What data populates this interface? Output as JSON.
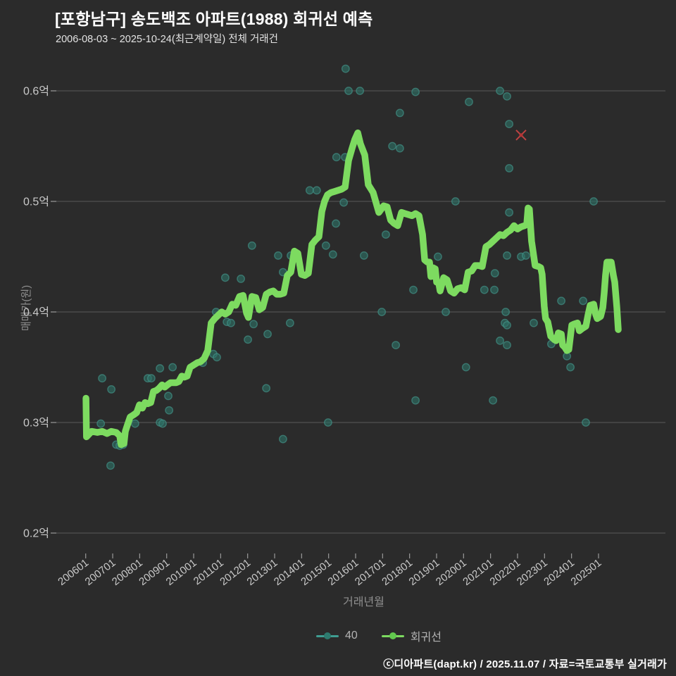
{
  "header": {
    "title": "[포항남구] 송도백조 아파트(1988) 회귀선 예측",
    "subtitle": "2006-08-03 ~ 2025-10-24(최근계약일) 전체 거래건"
  },
  "footer": {
    "text": "ⓒ디아파트(dapt.kr) / 2025.11.07 / 자료=국토교통부 실거래가"
  },
  "legend": {
    "items": [
      {
        "label": "40",
        "color": "#3f9e92"
      },
      {
        "label": "회귀선",
        "color": "#7ddb60"
      }
    ]
  },
  "chart_data": {
    "type": "line",
    "title": "[포항남구] 송도백조 아파트(1988) 회귀선 예측",
    "subtitle": "2006-08-03 ~ 2025-10-24(최근계약일) 전체 거래건",
    "xlabel": "거래년월",
    "ylabel": "매매가(원)",
    "ylim": [
      0.17,
      0.63
    ],
    "xlim": [
      2005.9,
      2027.4
    ],
    "grid": true,
    "legend_position": "bottom",
    "background": "#2b2b2b",
    "gridline_color": "#585858",
    "tick_label_color": "#c9c9c9",
    "y_ticks": [
      {
        "label": "0.6억",
        "value": 0.6
      },
      {
        "label": "0.5억",
        "value": 0.5
      },
      {
        "label": "0.4억",
        "value": 0.4
      },
      {
        "label": "0.3억",
        "value": 0.3
      },
      {
        "label": "0.2억",
        "value": 0.2
      }
    ],
    "x_ticks": [
      "200601",
      "200701",
      "200801",
      "200901",
      "201001",
      "201101",
      "201201",
      "201301",
      "201401",
      "201501",
      "201601",
      "201701",
      "201801",
      "201901",
      "202001",
      "202101",
      "202201",
      "202301",
      "202401",
      "202501"
    ],
    "series": [
      {
        "name": "40",
        "type": "scatter",
        "color": "#2d7166",
        "edge_color": "#44958a",
        "points": [
          [
            2006.56,
            0.299
          ],
          [
            2006.61,
            0.34
          ],
          [
            2006.92,
            0.261
          ],
          [
            2006.95,
            0.33
          ],
          [
            2007.13,
            0.28
          ],
          [
            2007.26,
            0.279
          ],
          [
            2007.39,
            0.28
          ],
          [
            2007.83,
            0.299
          ],
          [
            2008.3,
            0.34
          ],
          [
            2008.43,
            0.34
          ],
          [
            2008.75,
            0.349
          ],
          [
            2008.75,
            0.3
          ],
          [
            2008.85,
            0.299
          ],
          [
            2009.06,
            0.324
          ],
          [
            2009.09,
            0.311
          ],
          [
            2009.22,
            0.35
          ],
          [
            2010.34,
            0.354
          ],
          [
            2010.73,
            0.362
          ],
          [
            2010.86,
            0.359
          ],
          [
            2010.83,
            0.4
          ],
          [
            2011.17,
            0.431
          ],
          [
            2011.23,
            0.391
          ],
          [
            2011.38,
            0.39
          ],
          [
            2011.75,
            0.43
          ],
          [
            2012.01,
            0.375
          ],
          [
            2012.16,
            0.46
          ],
          [
            2012.22,
            0.389
          ],
          [
            2012.69,
            0.331
          ],
          [
            2012.74,
            0.38
          ],
          [
            2013.13,
            0.451
          ],
          [
            2013.31,
            0.436
          ],
          [
            2013.31,
            0.285
          ],
          [
            2013.57,
            0.39
          ],
          [
            2013.6,
            0.451
          ],
          [
            2014.3,
            0.51
          ],
          [
            2014.56,
            0.51
          ],
          [
            2014.9,
            0.46
          ],
          [
            2014.98,
            0.3
          ],
          [
            2015.16,
            0.452
          ],
          [
            2015.27,
            0.48
          ],
          [
            2015.29,
            0.54
          ],
          [
            2015.56,
            0.499
          ],
          [
            2015.61,
            0.54
          ],
          [
            2015.63,
            0.62
          ],
          [
            2015.74,
            0.6
          ],
          [
            2016.16,
            0.6
          ],
          [
            2016.31,
            0.451
          ],
          [
            2016.97,
            0.4
          ],
          [
            2017.12,
            0.47
          ],
          [
            2017.36,
            0.55
          ],
          [
            2017.49,
            0.37
          ],
          [
            2017.64,
            0.58
          ],
          [
            2017.64,
            0.548
          ],
          [
            2018.14,
            0.42
          ],
          [
            2018.22,
            0.599
          ],
          [
            2018.22,
            0.32
          ],
          [
            2019.05,
            0.45
          ],
          [
            2019.34,
            0.4
          ],
          [
            2019.7,
            0.5
          ],
          [
            2020.09,
            0.35
          ],
          [
            2020.2,
            0.59
          ],
          [
            2020.77,
            0.42
          ],
          [
            2021.09,
            0.32
          ],
          [
            2021.14,
            0.42
          ],
          [
            2021.16,
            0.435
          ],
          [
            2021.35,
            0.6
          ],
          [
            2021.35,
            0.374
          ],
          [
            2021.53,
            0.39
          ],
          [
            2021.56,
            0.4
          ],
          [
            2021.61,
            0.595
          ],
          [
            2021.61,
            0.451
          ],
          [
            2021.61,
            0.388
          ],
          [
            2021.61,
            0.37
          ],
          [
            2021.69,
            0.57
          ],
          [
            2021.69,
            0.53
          ],
          [
            2021.69,
            0.49
          ],
          [
            2022.13,
            0.45
          ],
          [
            2022.31,
            0.451
          ],
          [
            2022.6,
            0.39
          ],
          [
            2023.25,
            0.371
          ],
          [
            2023.62,
            0.41
          ],
          [
            2023.83,
            0.36
          ],
          [
            2023.96,
            0.35
          ],
          [
            2024.43,
            0.41
          ],
          [
            2024.53,
            0.3
          ],
          [
            2024.82,
            0.5
          ]
        ]
      },
      {
        "name": "회귀선",
        "type": "line",
        "color": "#7ddb60",
        "points": [
          [
            2006.01,
            0.322
          ],
          [
            2006.03,
            0.287
          ],
          [
            2006.22,
            0.292
          ],
          [
            2006.43,
            0.291
          ],
          [
            2006.61,
            0.292
          ],
          [
            2006.79,
            0.29
          ],
          [
            2006.95,
            0.292
          ],
          [
            2007.13,
            0.291
          ],
          [
            2007.26,
            0.288
          ],
          [
            2007.31,
            0.28
          ],
          [
            2007.42,
            0.281
          ],
          [
            2007.47,
            0.292
          ],
          [
            2007.55,
            0.298
          ],
          [
            2007.65,
            0.305
          ],
          [
            2007.78,
            0.307
          ],
          [
            2007.89,
            0.309
          ],
          [
            2007.99,
            0.316
          ],
          [
            2008.1,
            0.313
          ],
          [
            2008.2,
            0.318
          ],
          [
            2008.3,
            0.317
          ],
          [
            2008.41,
            0.318
          ],
          [
            2008.51,
            0.328
          ],
          [
            2008.62,
            0.329
          ],
          [
            2008.72,
            0.331
          ],
          [
            2008.83,
            0.334
          ],
          [
            2008.93,
            0.332
          ],
          [
            2009.03,
            0.334
          ],
          [
            2009.14,
            0.336
          ],
          [
            2009.24,
            0.336
          ],
          [
            2009.35,
            0.336
          ],
          [
            2009.45,
            0.337
          ],
          [
            2009.56,
            0.342
          ],
          [
            2009.66,
            0.341
          ],
          [
            2009.76,
            0.342
          ],
          [
            2009.87,
            0.35
          ],
          [
            2010.0,
            0.352
          ],
          [
            2010.13,
            0.354
          ],
          [
            2010.26,
            0.355
          ],
          [
            2010.39,
            0.358
          ],
          [
            2010.52,
            0.365
          ],
          [
            2010.65,
            0.39
          ],
          [
            2010.78,
            0.394
          ],
          [
            2010.91,
            0.397
          ],
          [
            2011.04,
            0.4
          ],
          [
            2011.17,
            0.398
          ],
          [
            2011.3,
            0.4
          ],
          [
            2011.43,
            0.407
          ],
          [
            2011.56,
            0.406
          ],
          [
            2011.7,
            0.414
          ],
          [
            2011.83,
            0.415
          ],
          [
            2011.96,
            0.399
          ],
          [
            2012.03,
            0.395
          ],
          [
            2012.16,
            0.414
          ],
          [
            2012.3,
            0.413
          ],
          [
            2012.43,
            0.402
          ],
          [
            2012.56,
            0.404
          ],
          [
            2012.69,
            0.416
          ],
          [
            2012.82,
            0.418
          ],
          [
            2012.95,
            0.419
          ],
          [
            2013.08,
            0.416
          ],
          [
            2013.21,
            0.416
          ],
          [
            2013.34,
            0.417
          ],
          [
            2013.47,
            0.433
          ],
          [
            2013.6,
            0.436
          ],
          [
            2013.73,
            0.455
          ],
          [
            2013.86,
            0.453
          ],
          [
            2013.99,
            0.434
          ],
          [
            2014.12,
            0.433
          ],
          [
            2014.25,
            0.435
          ],
          [
            2014.38,
            0.461
          ],
          [
            2014.51,
            0.465
          ],
          [
            2014.64,
            0.468
          ],
          [
            2014.75,
            0.491
          ],
          [
            2014.85,
            0.5
          ],
          [
            2014.96,
            0.506
          ],
          [
            2015.09,
            0.508
          ],
          [
            2015.22,
            0.509
          ],
          [
            2015.35,
            0.51
          ],
          [
            2015.48,
            0.511
          ],
          [
            2015.61,
            0.513
          ],
          [
            2015.74,
            0.537
          ],
          [
            2015.87,
            0.548
          ],
          [
            2015.97,
            0.556
          ],
          [
            2016.08,
            0.562
          ],
          [
            2016.18,
            0.552
          ],
          [
            2016.34,
            0.542
          ],
          [
            2016.47,
            0.515
          ],
          [
            2016.65,
            0.508
          ],
          [
            2016.86,
            0.49
          ],
          [
            2017.04,
            0.496
          ],
          [
            2017.17,
            0.495
          ],
          [
            2017.3,
            0.483
          ],
          [
            2017.43,
            0.48
          ],
          [
            2017.56,
            0.478
          ],
          [
            2017.7,
            0.49
          ],
          [
            2017.83,
            0.489
          ],
          [
            2017.96,
            0.488
          ],
          [
            2018.09,
            0.487
          ],
          [
            2018.22,
            0.489
          ],
          [
            2018.35,
            0.487
          ],
          [
            2018.48,
            0.47
          ],
          [
            2018.56,
            0.447
          ],
          [
            2018.66,
            0.445
          ],
          [
            2018.74,
            0.445
          ],
          [
            2018.79,
            0.432
          ],
          [
            2018.87,
            0.44
          ],
          [
            2018.95,
            0.439
          ],
          [
            2019.0,
            0.427
          ],
          [
            2019.08,
            0.426
          ],
          [
            2019.13,
            0.419
          ],
          [
            2019.26,
            0.431
          ],
          [
            2019.39,
            0.429
          ],
          [
            2019.52,
            0.419
          ],
          [
            2019.65,
            0.417
          ],
          [
            2019.78,
            0.421
          ],
          [
            2019.91,
            0.422
          ],
          [
            2020.04,
            0.42
          ],
          [
            2020.17,
            0.436
          ],
          [
            2020.3,
            0.437
          ],
          [
            2020.43,
            0.442
          ],
          [
            2020.56,
            0.442
          ],
          [
            2020.69,
            0.441
          ],
          [
            2020.83,
            0.459
          ],
          [
            2020.96,
            0.461
          ],
          [
            2021.09,
            0.464
          ],
          [
            2021.22,
            0.467
          ],
          [
            2021.35,
            0.47
          ],
          [
            2021.48,
            0.469
          ],
          [
            2021.61,
            0.472
          ],
          [
            2021.74,
            0.474
          ],
          [
            2021.87,
            0.478
          ],
          [
            2022.0,
            0.475
          ],
          [
            2022.13,
            0.477
          ],
          [
            2022.26,
            0.478
          ],
          [
            2022.34,
            0.479
          ],
          [
            2022.39,
            0.494
          ],
          [
            2022.44,
            0.493
          ],
          [
            2022.52,
            0.464
          ],
          [
            2022.65,
            0.442
          ],
          [
            2022.78,
            0.441
          ],
          [
            2022.86,
            0.44
          ],
          [
            2022.91,
            0.434
          ],
          [
            2022.99,
            0.405
          ],
          [
            2023.04,
            0.394
          ],
          [
            2023.12,
            0.391
          ],
          [
            2023.23,
            0.378
          ],
          [
            2023.36,
            0.375
          ],
          [
            2023.43,
            0.374
          ],
          [
            2023.51,
            0.381
          ],
          [
            2023.62,
            0.38
          ],
          [
            2023.67,
            0.37
          ],
          [
            2023.75,
            0.368
          ],
          [
            2023.83,
            0.365
          ],
          [
            2023.9,
            0.366
          ],
          [
            2024.01,
            0.388
          ],
          [
            2024.09,
            0.389
          ],
          [
            2024.22,
            0.39
          ],
          [
            2024.29,
            0.383
          ],
          [
            2024.4,
            0.385
          ],
          [
            2024.53,
            0.387
          ],
          [
            2024.61,
            0.397
          ],
          [
            2024.69,
            0.406
          ],
          [
            2024.82,
            0.407
          ],
          [
            2024.89,
            0.398
          ],
          [
            2024.95,
            0.394
          ],
          [
            2025.08,
            0.396
          ],
          [
            2025.16,
            0.404
          ],
          [
            2025.21,
            0.417
          ],
          [
            2025.26,
            0.433
          ],
          [
            2025.31,
            0.445
          ],
          [
            2025.47,
            0.445
          ],
          [
            2025.55,
            0.433
          ],
          [
            2025.6,
            0.427
          ],
          [
            2025.68,
            0.404
          ],
          [
            2025.73,
            0.384
          ]
        ]
      },
      {
        "name": "prediction-x",
        "type": "marker-x",
        "color": "#cf4545",
        "points": [
          [
            2022.13,
            0.56
          ]
        ]
      }
    ]
  }
}
